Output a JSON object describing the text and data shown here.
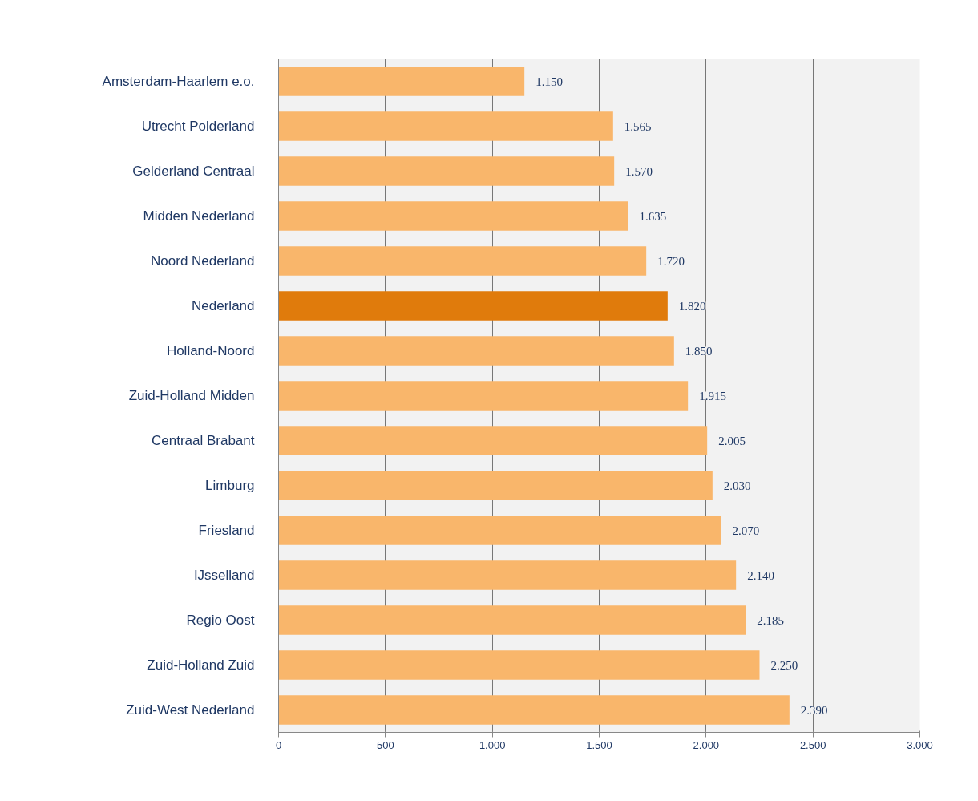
{
  "chart_data": {
    "type": "bar",
    "orientation": "horizontal",
    "categories": [
      "Amsterdam-Haarlem e.o.",
      "Utrecht Polderland",
      "Gelderland Centraal",
      "Midden Nederland",
      "Noord Nederland",
      "Nederland",
      "Holland-Noord",
      "Zuid-Holland Midden",
      "Centraal Brabant",
      "Limburg",
      "Friesland",
      "IJsselland",
      "Regio Oost",
      "Zuid-Holland Zuid",
      "Zuid-West Nederland"
    ],
    "values": [
      1150,
      1565,
      1570,
      1635,
      1720,
      1820,
      1850,
      1915,
      2005,
      2030,
      2070,
      2140,
      2185,
      2250,
      2390
    ],
    "colors": [
      "#f9b66b",
      "#f9b66b",
      "#f9b66b",
      "#f9b66b",
      "#f9b66b",
      "#e07b0c",
      "#f9b66b",
      "#f9b66b",
      "#f9b66b",
      "#f9b66b",
      "#f9b66b",
      "#f9b66b",
      "#f9b66b",
      "#f9b66b",
      "#f9b66b"
    ],
    "value_labels": [
      "1.150",
      "1.565",
      "1.570",
      "1.635",
      "1.720",
      "1.820",
      "1.850",
      "1.915",
      "2.005",
      "2.030",
      "2.070",
      "2.140",
      "2.185",
      "2.250",
      "2.390"
    ],
    "xlim": [
      0,
      3000
    ],
    "xticks": [
      0,
      500,
      {
        "value": 1000,
        "label": "1.000"
      },
      {
        "value": 1500,
        "label": "1.500"
      },
      {
        "value": 2000,
        "label": "2.000"
      },
      {
        "value": 2500,
        "label": "2.500"
      },
      {
        "value": 3000,
        "label": "3.000"
      }
    ],
    "grid": "x"
  }
}
